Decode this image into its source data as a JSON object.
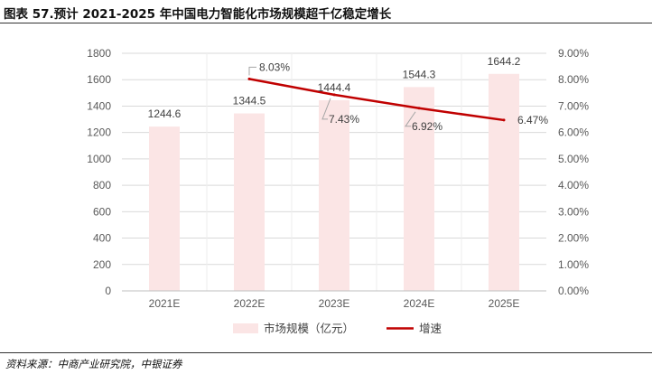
{
  "header": {
    "title": "图表 57.预计 2021-2025 年中国电力智能化市场规模超千亿稳定增长"
  },
  "footer": {
    "source": "资料来源：中商产业研究院，中银证券"
  },
  "chart_data": {
    "type": "bar",
    "categories": [
      "2021E",
      "2022E",
      "2023E",
      "2024E",
      "2025E"
    ],
    "series": [
      {
        "name": "市场规模（亿元）",
        "type": "bar",
        "axis": "left",
        "values": [
          1244.6,
          1344.5,
          1444.4,
          1544.3,
          1644.2
        ],
        "labels": [
          "1244.6",
          "1344.5",
          "1444.4",
          "1544.3",
          "1644.2"
        ],
        "color": "#fbe5e5"
      },
      {
        "name": "增速",
        "type": "line",
        "axis": "right",
        "values": [
          null,
          8.03,
          7.43,
          6.92,
          6.47
        ],
        "labels": [
          null,
          "8.03%",
          "7.43%",
          "6.92%",
          "6.47%"
        ],
        "color": "#c00000"
      }
    ],
    "y_left": {
      "min": 0,
      "max": 1800,
      "step": 200,
      "ticks": [
        "0",
        "200",
        "400",
        "600",
        "800",
        "1000",
        "1200",
        "1400",
        "1600",
        "1800"
      ]
    },
    "y_right": {
      "min": 0,
      "max": 9,
      "step": 1,
      "ticks": [
        "0.00%",
        "1.00%",
        "2.00%",
        "3.00%",
        "4.00%",
        "5.00%",
        "6.00%",
        "7.00%",
        "8.00%",
        "9.00%"
      ]
    },
    "grid": true,
    "legend": "bottom"
  }
}
